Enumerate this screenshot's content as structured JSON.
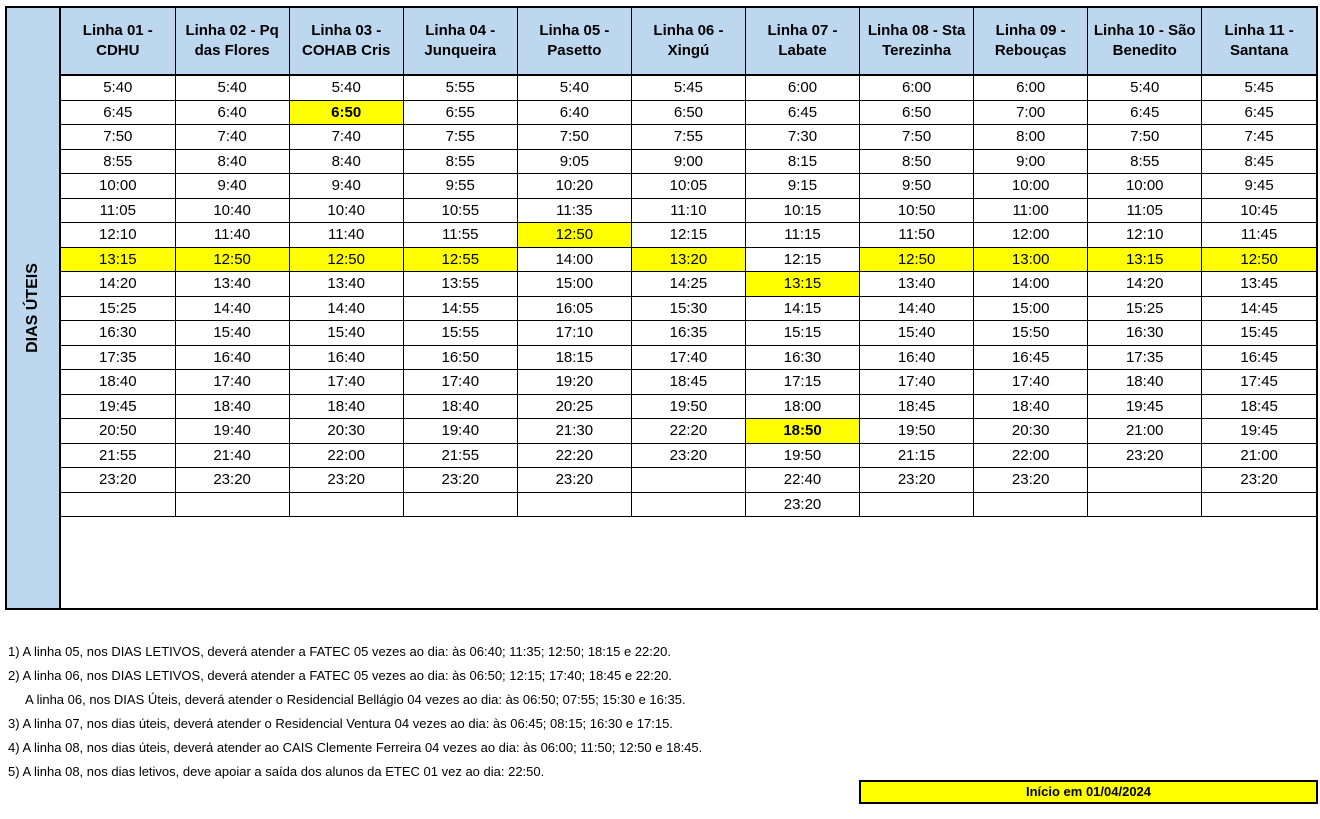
{
  "side_label": "DIAS ÚTEIS",
  "columns": [
    {
      "line": "Linha 01 -",
      "name": "CDHU"
    },
    {
      "line": "Linha 02 - Pq",
      "name": "das Flores"
    },
    {
      "line": "Linha 03 -",
      "name": "COHAB Cris"
    },
    {
      "line": "Linha 04 -",
      "name": "Junqueira"
    },
    {
      "line": "Linha 05 -",
      "name": "Pasetto"
    },
    {
      "line": "Linha 06 -",
      "name": "Xingú"
    },
    {
      "line": "Linha 07 -",
      "name": "Labate"
    },
    {
      "line": "Linha 08 - Sta",
      "name": "Terezinha"
    },
    {
      "line": "Linha 09 -",
      "name": "Rebouças"
    },
    {
      "line": "Linha 10 - São",
      "name": "Benedito"
    },
    {
      "line": "Linha 11 -",
      "name": "Santana"
    }
  ],
  "rows": [
    [
      "5:40",
      "5:40",
      "5:40",
      "5:55",
      "5:40",
      "5:45",
      "6:00",
      "6:00",
      "6:00",
      "5:40",
      "5:45"
    ],
    [
      "6:45",
      "6:40",
      "6:50",
      "6:55",
      "6:40",
      "6:50",
      "6:45",
      "6:50",
      "7:00",
      "6:45",
      "6:45"
    ],
    [
      "7:50",
      "7:40",
      "7:40",
      "7:55",
      "7:50",
      "7:55",
      "7:30",
      "7:50",
      "8:00",
      "7:50",
      "7:45"
    ],
    [
      "8:55",
      "8:40",
      "8:40",
      "8:55",
      "9:05",
      "9:00",
      "8:15",
      "8:50",
      "9:00",
      "8:55",
      "8:45"
    ],
    [
      "10:00",
      "9:40",
      "9:40",
      "9:55",
      "10:20",
      "10:05",
      "9:15",
      "9:50",
      "10:00",
      "10:00",
      "9:45"
    ],
    [
      "11:05",
      "10:40",
      "10:40",
      "10:55",
      "11:35",
      "11:10",
      "10:15",
      "10:50",
      "11:00",
      "11:05",
      "10:45"
    ],
    [
      "12:10",
      "11:40",
      "11:40",
      "11:55",
      "12:50",
      "12:15",
      "11:15",
      "11:50",
      "12:00",
      "12:10",
      "11:45"
    ],
    [
      "13:15",
      "12:50",
      "12:50",
      "12:55",
      "14:00",
      "13:20",
      "12:15",
      "12:50",
      "13:00",
      "13:15",
      "12:50"
    ],
    [
      "14:20",
      "13:40",
      "13:40",
      "13:55",
      "15:00",
      "14:25",
      "13:15",
      "13:40",
      "14:00",
      "14:20",
      "13:45"
    ],
    [
      "15:25",
      "14:40",
      "14:40",
      "14:55",
      "16:05",
      "15:30",
      "14:15",
      "14:40",
      "15:00",
      "15:25",
      "14:45"
    ],
    [
      "16:30",
      "15:40",
      "15:40",
      "15:55",
      "17:10",
      "16:35",
      "15:15",
      "15:40",
      "15:50",
      "16:30",
      "15:45"
    ],
    [
      "17:35",
      "16:40",
      "16:40",
      "16:50",
      "18:15",
      "17:40",
      "16:30",
      "16:40",
      "16:45",
      "17:35",
      "16:45"
    ],
    [
      "18:40",
      "17:40",
      "17:40",
      "17:40",
      "19:20",
      "18:45",
      "17:15",
      "17:40",
      "17:40",
      "18:40",
      "17:45"
    ],
    [
      "19:45",
      "18:40",
      "18:40",
      "18:40",
      "20:25",
      "19:50",
      "18:00",
      "18:45",
      "18:40",
      "19:45",
      "18:45"
    ],
    [
      "20:50",
      "19:40",
      "20:30",
      "19:40",
      "21:30",
      "22:20",
      "18:50",
      "19:50",
      "20:30",
      "21:00",
      "19:45"
    ],
    [
      "21:55",
      "21:40",
      "22:00",
      "21:55",
      "22:20",
      "23:20",
      "19:50",
      "21:15",
      "22:00",
      "23:20",
      "21:00"
    ],
    [
      "23:20",
      "23:20",
      "23:20",
      "23:20",
      "23:20",
      "",
      "22:40",
      "23:20",
      "23:20",
      "",
      "23:20"
    ],
    [
      "",
      "",
      "",
      "",
      "",
      "",
      "23:20",
      "",
      "",
      "",
      ""
    ]
  ],
  "highlights": [
    {
      "row": 1,
      "col": 2,
      "bold": true
    },
    {
      "row": 6,
      "col": 4,
      "bold": false
    },
    {
      "row": 7,
      "col": 0,
      "bold": false
    },
    {
      "row": 7,
      "col": 1,
      "bold": false
    },
    {
      "row": 7,
      "col": 2,
      "bold": false
    },
    {
      "row": 7,
      "col": 3,
      "bold": false
    },
    {
      "row": 7,
      "col": 5,
      "bold": false
    },
    {
      "row": 7,
      "col": 7,
      "bold": false
    },
    {
      "row": 7,
      "col": 8,
      "bold": false
    },
    {
      "row": 7,
      "col": 9,
      "bold": false
    },
    {
      "row": 7,
      "col": 10,
      "bold": false
    },
    {
      "row": 8,
      "col": 6,
      "bold": false
    },
    {
      "row": 14,
      "col": 6,
      "bold": true
    }
  ],
  "notes": [
    "1) A linha 05, nos DIAS LETIVOS, deverá atender a FATEC 05 vezes ao dia: às 06:40; 11:35; 12:50; 18:15 e 22:20.",
    "2) A linha 06, nos DIAS LETIVOS, deverá atender a FATEC 05 vezes ao dia: às 06:50; 12:15; 17:40; 18:45 e 22:20.",
    "A linha 06, nos DIAS Úteis, deverá atender o Residencial Bellágio  04 vezes ao dia: às 06:50; 07:55; 15:30 e 16:35.",
    "3) A linha 07, nos dias úteis, deverá atender o Residencial Ventura 04 vezes ao dia: às 06:45; 08:15; 16:30 e 17:15.",
    "4) A linha 08, nos dias úteis, deverá atender ao CAIS Clemente Ferreira 04 vezes ao dia: às 06:00; 11:50; 12:50 e 18:45.",
    "5) A linha 08, nos dias letivos, deve apoiar a saída dos alunos da ETEC 01 vez ao dia: 22:50."
  ],
  "start_label": "Início em 01/04/2024",
  "colors": {
    "header_bg": "#bdd7ee",
    "highlight": "#ffff00"
  }
}
